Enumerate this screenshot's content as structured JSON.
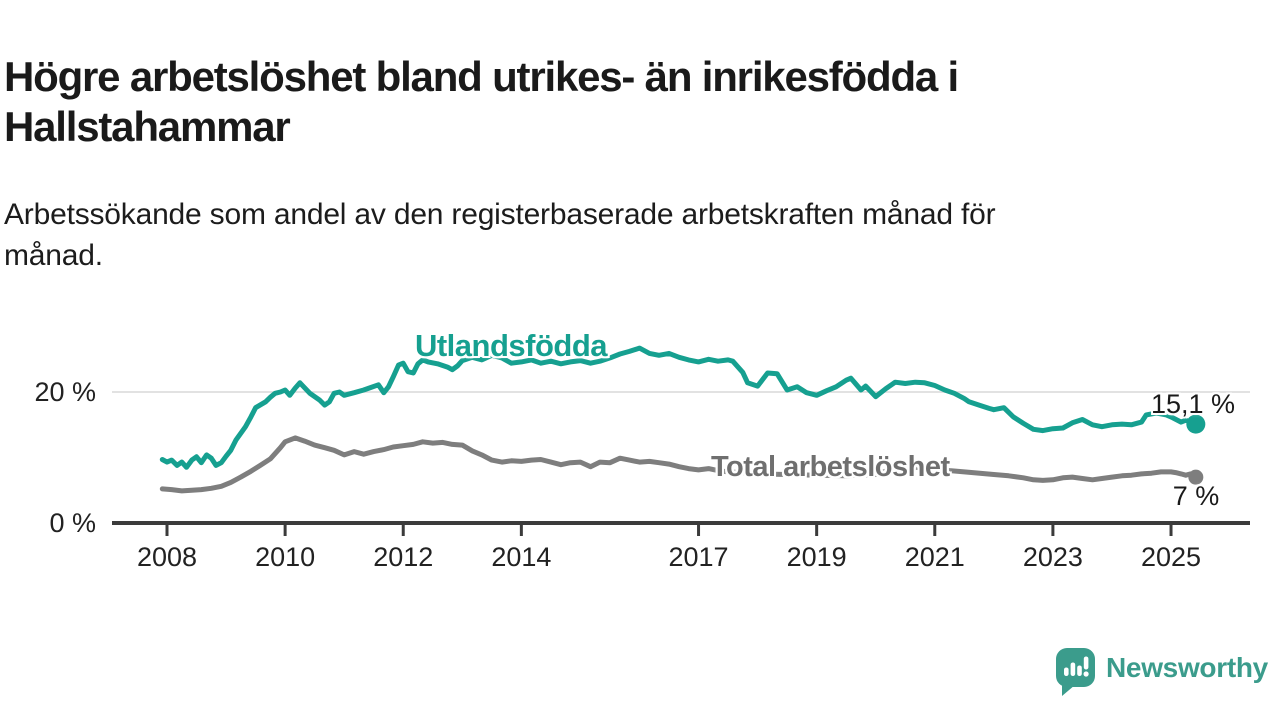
{
  "header": {
    "title_line1": "Högre arbetslöshet bland utrikes- än inrikesfödda i",
    "title_line2": "Hallstahammar",
    "subtitle_line1": "Arbetssökande som andel av den registerbaserade arbetskraften månad för",
    "subtitle_line2": "månad."
  },
  "branding": {
    "name": "Newsworthy",
    "logo_icon": "speech-bubble-bar-chart-icon",
    "color": "#3B9C8C"
  },
  "chart_data": {
    "type": "line",
    "title": "Högre arbetslöshet bland utrikes- än inrikesfödda i Hallstahammar",
    "subtitle": "Arbetssökande som andel av den registerbaserade arbetskraften månad för månad.",
    "unit": "%",
    "x_axis": {
      "ticks": [
        2008,
        2010,
        2012,
        2014,
        2017,
        2019,
        2021,
        2023,
        2025
      ],
      "range_years": [
        2007.9,
        2026.3
      ]
    },
    "y_axis": {
      "tick_values": [
        0,
        20
      ],
      "tick_labels": [
        "0 %",
        "20 %"
      ],
      "range": [
        0,
        28
      ],
      "gridline_at": 20
    },
    "legend_position": "inline-labels-on-lines",
    "series": [
      {
        "name": "Utlandsfödda",
        "color": "#16A090",
        "end_label": "15,1 %",
        "end_value": 15.1,
        "points": [
          [
            2007.92,
            9.7
          ],
          [
            2008.0,
            9.3
          ],
          [
            2008.08,
            9.6
          ],
          [
            2008.17,
            8.8
          ],
          [
            2008.25,
            9.3
          ],
          [
            2008.33,
            8.5
          ],
          [
            2008.42,
            9.6
          ],
          [
            2008.5,
            10.1
          ],
          [
            2008.58,
            9.2
          ],
          [
            2008.67,
            10.4
          ],
          [
            2008.75,
            9.9
          ],
          [
            2008.83,
            8.8
          ],
          [
            2008.92,
            9.2
          ],
          [
            2009.0,
            10.2
          ],
          [
            2009.08,
            11.1
          ],
          [
            2009.17,
            12.7
          ],
          [
            2009.33,
            14.7
          ],
          [
            2009.42,
            16.2
          ],
          [
            2009.5,
            17.6
          ],
          [
            2009.67,
            18.5
          ],
          [
            2009.75,
            19.2
          ],
          [
            2009.83,
            19.8
          ],
          [
            2009.92,
            20.0
          ],
          [
            2010.0,
            20.3
          ],
          [
            2010.08,
            19.5
          ],
          [
            2010.17,
            20.6
          ],
          [
            2010.25,
            21.4
          ],
          [
            2010.42,
            19.8
          ],
          [
            2010.58,
            18.8
          ],
          [
            2010.67,
            18.0
          ],
          [
            2010.75,
            18.5
          ],
          [
            2010.83,
            19.8
          ],
          [
            2010.92,
            20.0
          ],
          [
            2011.0,
            19.5
          ],
          [
            2011.17,
            19.9
          ],
          [
            2011.33,
            20.3
          ],
          [
            2011.42,
            20.6
          ],
          [
            2011.58,
            21.1
          ],
          [
            2011.67,
            19.9
          ],
          [
            2011.75,
            20.8
          ],
          [
            2011.83,
            22.3
          ],
          [
            2011.92,
            24.1
          ],
          [
            2012.0,
            24.4
          ],
          [
            2012.08,
            23.1
          ],
          [
            2012.17,
            22.9
          ],
          [
            2012.25,
            24.3
          ],
          [
            2012.33,
            24.9
          ],
          [
            2012.42,
            24.6
          ],
          [
            2012.58,
            24.3
          ],
          [
            2012.75,
            23.8
          ],
          [
            2012.83,
            23.4
          ],
          [
            2012.92,
            24.0
          ],
          [
            2013.0,
            24.8
          ],
          [
            2013.17,
            25.3
          ],
          [
            2013.33,
            24.9
          ],
          [
            2013.5,
            25.6
          ],
          [
            2013.67,
            25.2
          ],
          [
            2013.83,
            24.4
          ],
          [
            2014.0,
            24.6
          ],
          [
            2014.17,
            24.9
          ],
          [
            2014.33,
            24.4
          ],
          [
            2014.5,
            24.7
          ],
          [
            2014.67,
            24.3
          ],
          [
            2014.83,
            24.6
          ],
          [
            2015.0,
            24.8
          ],
          [
            2015.17,
            24.4
          ],
          [
            2015.33,
            24.7
          ],
          [
            2015.5,
            25.2
          ],
          [
            2015.67,
            25.8
          ],
          [
            2015.83,
            26.2
          ],
          [
            2016.0,
            26.7
          ],
          [
            2016.17,
            25.9
          ],
          [
            2016.33,
            25.6
          ],
          [
            2016.5,
            25.9
          ],
          [
            2016.67,
            25.3
          ],
          [
            2016.83,
            24.9
          ],
          [
            2017.0,
            24.6
          ],
          [
            2017.17,
            25.0
          ],
          [
            2017.33,
            24.7
          ],
          [
            2017.5,
            24.9
          ],
          [
            2017.58,
            24.7
          ],
          [
            2017.75,
            23.0
          ],
          [
            2017.83,
            21.4
          ],
          [
            2018.0,
            20.9
          ],
          [
            2018.17,
            22.9
          ],
          [
            2018.33,
            22.8
          ],
          [
            2018.5,
            20.3
          ],
          [
            2018.67,
            20.8
          ],
          [
            2018.83,
            19.9
          ],
          [
            2019.0,
            19.5
          ],
          [
            2019.17,
            20.2
          ],
          [
            2019.33,
            20.8
          ],
          [
            2019.5,
            21.8
          ],
          [
            2019.58,
            22.1
          ],
          [
            2019.75,
            20.3
          ],
          [
            2019.83,
            20.9
          ],
          [
            2020.0,
            19.3
          ],
          [
            2020.17,
            20.5
          ],
          [
            2020.33,
            21.5
          ],
          [
            2020.5,
            21.3
          ],
          [
            2020.67,
            21.5
          ],
          [
            2020.83,
            21.4
          ],
          [
            2021.0,
            21.0
          ],
          [
            2021.17,
            20.3
          ],
          [
            2021.33,
            19.8
          ],
          [
            2021.5,
            19.0
          ],
          [
            2021.58,
            18.5
          ],
          [
            2021.75,
            18.0
          ],
          [
            2021.92,
            17.5
          ],
          [
            2022.0,
            17.3
          ],
          [
            2022.17,
            17.6
          ],
          [
            2022.33,
            16.2
          ],
          [
            2022.5,
            15.2
          ],
          [
            2022.67,
            14.3
          ],
          [
            2022.83,
            14.1
          ],
          [
            2023.0,
            14.4
          ],
          [
            2023.17,
            14.5
          ],
          [
            2023.33,
            15.3
          ],
          [
            2023.5,
            15.8
          ],
          [
            2023.67,
            15.0
          ],
          [
            2023.83,
            14.7
          ],
          [
            2024.0,
            15.0
          ],
          [
            2024.17,
            15.1
          ],
          [
            2024.33,
            15.0
          ],
          [
            2024.5,
            15.4
          ],
          [
            2024.58,
            16.5
          ],
          [
            2024.75,
            16.8
          ],
          [
            2024.92,
            16.5
          ],
          [
            2025.0,
            16.2
          ],
          [
            2025.17,
            15.4
          ],
          [
            2025.25,
            15.7
          ],
          [
            2025.42,
            15.1
          ]
        ]
      },
      {
        "name": "Total arbetslöshet",
        "color": "#7E7E7E",
        "end_label": "7 %",
        "end_value": 7.0,
        "points": [
          [
            2007.92,
            5.2
          ],
          [
            2008.08,
            5.1
          ],
          [
            2008.25,
            4.9
          ],
          [
            2008.42,
            5.0
          ],
          [
            2008.58,
            5.1
          ],
          [
            2008.75,
            5.3
          ],
          [
            2008.92,
            5.6
          ],
          [
            2009.08,
            6.2
          ],
          [
            2009.25,
            7.0
          ],
          [
            2009.42,
            7.9
          ],
          [
            2009.58,
            8.8
          ],
          [
            2009.75,
            9.8
          ],
          [
            2009.92,
            11.5
          ],
          [
            2010.0,
            12.4
          ],
          [
            2010.17,
            13.0
          ],
          [
            2010.33,
            12.5
          ],
          [
            2010.5,
            11.9
          ],
          [
            2010.67,
            11.5
          ],
          [
            2010.83,
            11.1
          ],
          [
            2011.0,
            10.4
          ],
          [
            2011.17,
            10.9
          ],
          [
            2011.33,
            10.5
          ],
          [
            2011.5,
            10.9
          ],
          [
            2011.67,
            11.2
          ],
          [
            2011.83,
            11.6
          ],
          [
            2012.0,
            11.8
          ],
          [
            2012.17,
            12.0
          ],
          [
            2012.33,
            12.4
          ],
          [
            2012.5,
            12.2
          ],
          [
            2012.67,
            12.3
          ],
          [
            2012.83,
            12.0
          ],
          [
            2013.0,
            11.9
          ],
          [
            2013.17,
            11.0
          ],
          [
            2013.33,
            10.4
          ],
          [
            2013.5,
            9.6
          ],
          [
            2013.67,
            9.3
          ],
          [
            2013.83,
            9.5
          ],
          [
            2014.0,
            9.4
          ],
          [
            2014.17,
            9.6
          ],
          [
            2014.33,
            9.7
          ],
          [
            2014.5,
            9.3
          ],
          [
            2014.67,
            8.9
          ],
          [
            2014.83,
            9.2
          ],
          [
            2015.0,
            9.3
          ],
          [
            2015.17,
            8.6
          ],
          [
            2015.33,
            9.3
          ],
          [
            2015.5,
            9.2
          ],
          [
            2015.67,
            9.9
          ],
          [
            2015.83,
            9.6
          ],
          [
            2016.0,
            9.3
          ],
          [
            2016.17,
            9.4
          ],
          [
            2016.33,
            9.2
          ],
          [
            2016.5,
            9.0
          ],
          [
            2016.67,
            8.6
          ],
          [
            2016.83,
            8.3
          ],
          [
            2017.0,
            8.1
          ],
          [
            2017.17,
            8.3
          ],
          [
            2017.33,
            8.0
          ],
          [
            2017.5,
            7.8
          ],
          [
            2017.75,
            7.7
          ],
          [
            2018.0,
            7.5
          ],
          [
            2018.5,
            7.4
          ],
          [
            2019.0,
            7.3
          ],
          [
            2019.5,
            7.2
          ],
          [
            2020.0,
            7.4
          ],
          [
            2020.33,
            8.4
          ],
          [
            2020.67,
            8.5
          ],
          [
            2021.0,
            8.2
          ],
          [
            2021.5,
            7.8
          ],
          [
            2022.0,
            7.4
          ],
          [
            2022.25,
            7.2
          ],
          [
            2022.5,
            6.9
          ],
          [
            2022.67,
            6.6
          ],
          [
            2022.83,
            6.5
          ],
          [
            2023.0,
            6.6
          ],
          [
            2023.17,
            6.9
          ],
          [
            2023.33,
            7.0
          ],
          [
            2023.5,
            6.8
          ],
          [
            2023.67,
            6.6
          ],
          [
            2023.83,
            6.8
          ],
          [
            2024.0,
            7.0
          ],
          [
            2024.17,
            7.2
          ],
          [
            2024.33,
            7.3
          ],
          [
            2024.5,
            7.5
          ],
          [
            2024.67,
            7.6
          ],
          [
            2024.83,
            7.8
          ],
          [
            2025.0,
            7.8
          ],
          [
            2025.08,
            7.7
          ],
          [
            2025.17,
            7.5
          ],
          [
            2025.25,
            7.3
          ],
          [
            2025.33,
            7.5
          ],
          [
            2025.42,
            7.0
          ]
        ]
      }
    ]
  }
}
